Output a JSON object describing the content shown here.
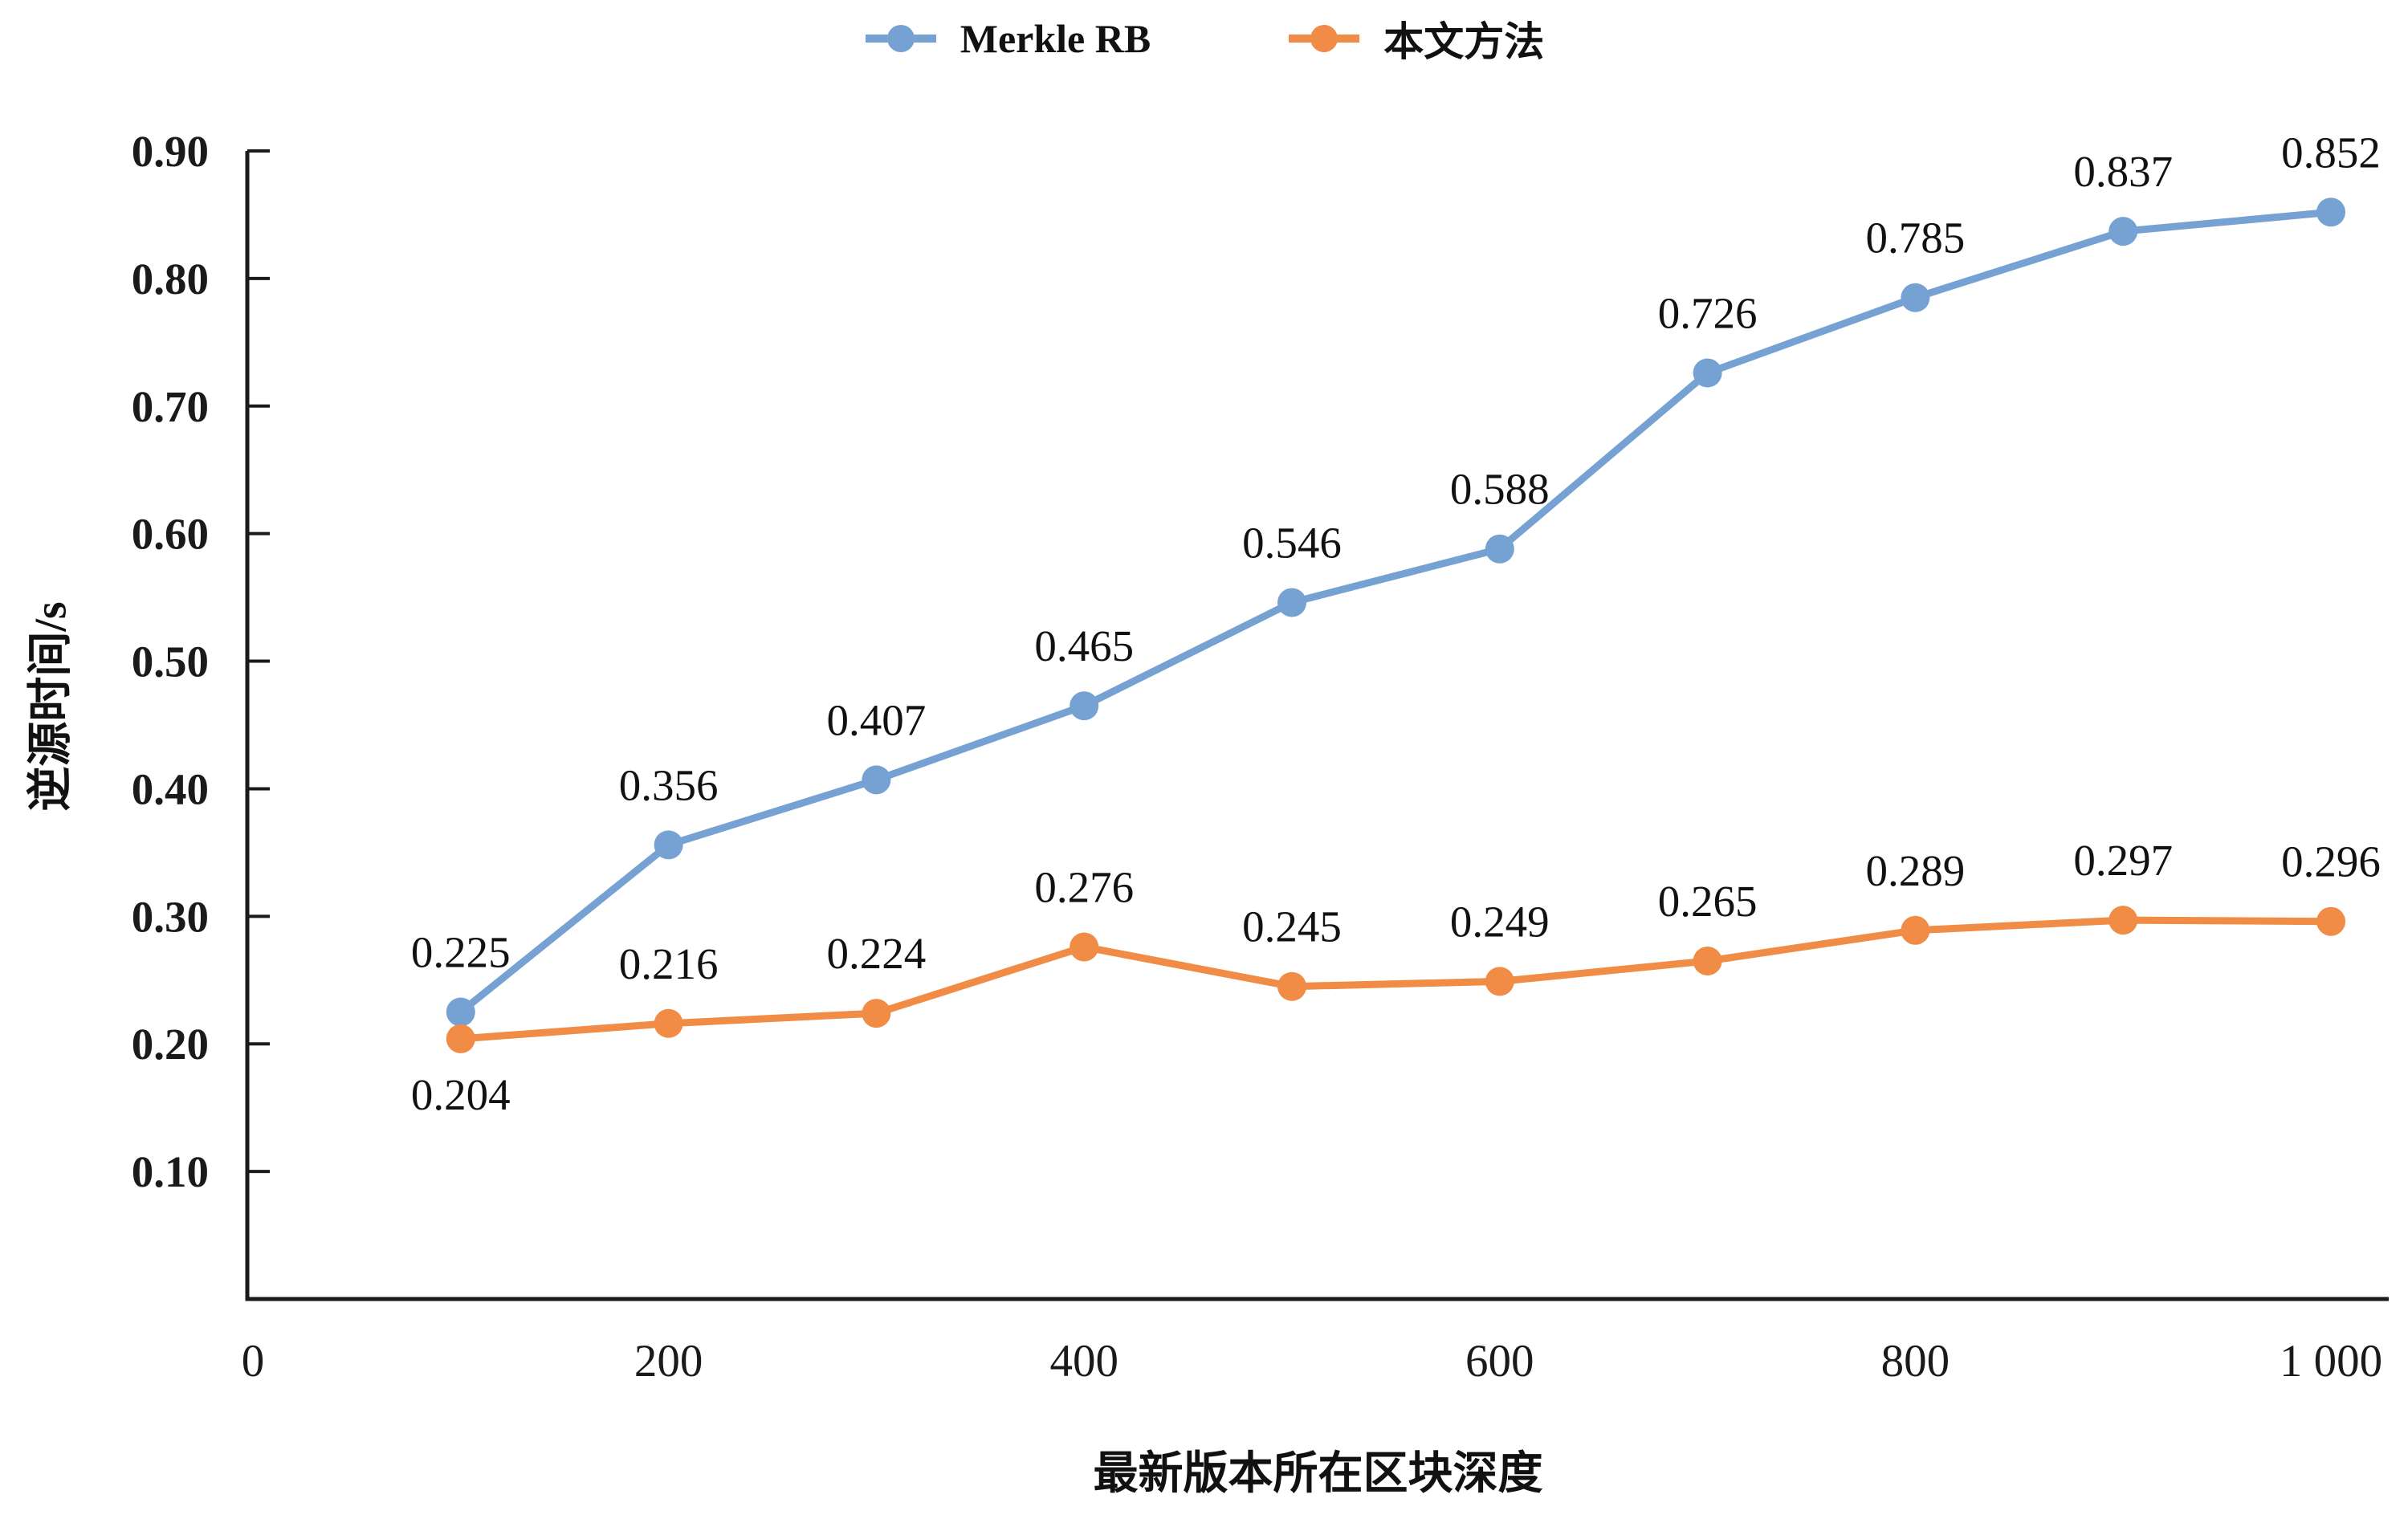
{
  "page": {
    "background": "#ffffff"
  },
  "legend": {
    "position": "top-center",
    "items": [
      {
        "label": "Merkle RB",
        "color": "#75A1D3"
      },
      {
        "label": "本文方法",
        "color": "#F08C45"
      }
    ]
  },
  "chart_data": {
    "type": "line",
    "title": "",
    "xlabel": "最新版本所在区块深度",
    "ylabel": "逆源时间/s",
    "x": [
      100,
      200,
      300,
      400,
      500,
      600,
      700,
      800,
      900,
      1000
    ],
    "series": [
      {
        "name": "Merkle RB",
        "color": "#75A1D3",
        "values": [
          0.225,
          0.356,
          0.407,
          0.465,
          0.546,
          0.588,
          0.726,
          0.785,
          0.837,
          0.852
        ],
        "label_positions": [
          "above",
          "above",
          "above",
          "above",
          "above",
          "above",
          "above",
          "above",
          "above",
          "above"
        ]
      },
      {
        "name": "本文方法",
        "color": "#F08C45",
        "values": [
          0.204,
          0.216,
          0.224,
          0.276,
          0.245,
          0.249,
          0.265,
          0.289,
          0.297,
          0.296
        ],
        "label_positions": [
          "below",
          "above",
          "above",
          "above",
          "above",
          "above",
          "above",
          "above",
          "above",
          "above"
        ]
      }
    ],
    "x_ticks": [
      0,
      200,
      400,
      600,
      800,
      1000
    ],
    "x_tick_labels": [
      "0",
      "200",
      "400",
      "600",
      "800",
      "1 000"
    ],
    "y_ticks": [
      0.1,
      0.2,
      0.3,
      0.4,
      0.5,
      0.6,
      0.7,
      0.8,
      0.9
    ],
    "y_tick_labels": [
      "0.10",
      "0.20",
      "0.30",
      "0.40",
      "0.50",
      "0.60",
      "0.70",
      "0.80",
      "0.90"
    ],
    "xlim": [
      0,
      1030
    ],
    "ylim": [
      0,
      0.9
    ],
    "grid": false,
    "legend_position": "top-center",
    "axis_color": "#1a1a1a",
    "data_label_decimals": 3
  }
}
